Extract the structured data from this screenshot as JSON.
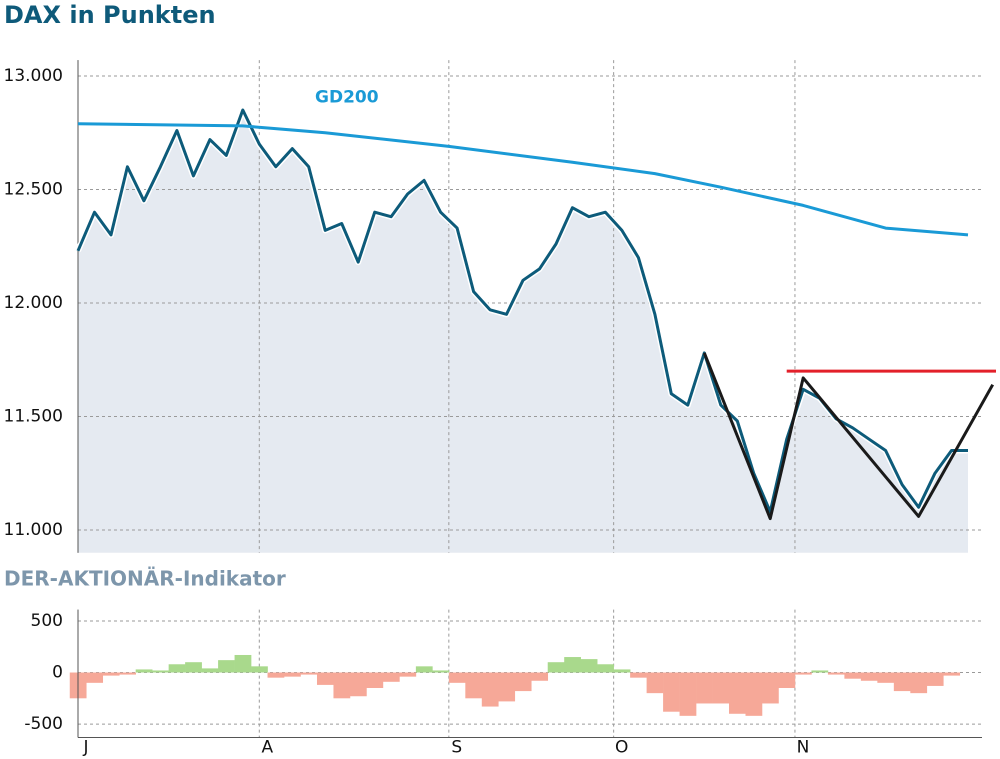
{
  "chart_data": [
    {
      "type": "line",
      "title": "DAX in Punkten",
      "xlim": [
        0,
        108
      ],
      "xticks": [
        0,
        22,
        45,
        65,
        87
      ],
      "ylim": [
        10900,
        13070
      ],
      "yticks": [
        {
          "value": 11000,
          "label": "11.000"
        },
        {
          "value": 11500,
          "label": "11.500"
        },
        {
          "value": 12000,
          "label": "12.000"
        },
        {
          "value": 12500,
          "label": "12.500"
        },
        {
          "value": 13000,
          "label": "13.000"
        }
      ],
      "grid": true,
      "series": [
        {
          "color": "#0d5b7a",
          "area_color": "#e5eaf1",
          "x": [
            0,
            2,
            4,
            6,
            8,
            10,
            12,
            14,
            16,
            18,
            20,
            22,
            24,
            26,
            28,
            30,
            32,
            34,
            36,
            38,
            40,
            42,
            44,
            46,
            48,
            50,
            52,
            54,
            56,
            58,
            60,
            62,
            64,
            66,
            68,
            70,
            72,
            74,
            76,
            78,
            80,
            82,
            84,
            86,
            88,
            90,
            92,
            94,
            96,
            98,
            100,
            102,
            104,
            106,
            108
          ],
          "values": [
            12230,
            12400,
            12300,
            12600,
            12450,
            12600,
            12760,
            12560,
            12720,
            12650,
            12850,
            12700,
            12600,
            12680,
            12600,
            12320,
            12350,
            12180,
            12400,
            12380,
            12480,
            12540,
            12400,
            12330,
            12050,
            11970,
            11950,
            12100,
            12150,
            12260,
            12420,
            12380,
            12400,
            12320,
            12200,
            11950,
            11600,
            11550,
            11780,
            11550,
            11480,
            11250,
            11080,
            11400,
            11620,
            11580,
            11490,
            11450,
            11400,
            11350,
            11200,
            11100,
            11250,
            11350,
            11350
          ]
        },
        {
          "name": "GD200",
          "color": "#1a9ad6",
          "x": [
            0,
            20,
            30,
            45,
            60,
            70,
            78,
            88,
            98,
            108
          ],
          "values": [
            12790,
            12780,
            12750,
            12690,
            12620,
            12570,
            12510,
            12430,
            12330,
            12300
          ]
        }
      ],
      "annotation_lines": [
        {
          "color": "#e3202a",
          "x": [
            86,
            111.4
          ],
          "values": [
            11700,
            11700
          ]
        },
        {
          "color": "#1a1a1a",
          "x": [
            76,
            84,
            88,
            102,
            111
          ],
          "values": [
            11780,
            11050,
            11670,
            11060,
            11640
          ]
        }
      ]
    },
    {
      "type": "bar",
      "title": "DER-AKTIONÄR-Indikator",
      "xlim": [
        0,
        108
      ],
      "xticks": [
        {
          "value": 0,
          "label": "J"
        },
        {
          "value": 22,
          "label": "A"
        },
        {
          "value": 45,
          "label": "S"
        },
        {
          "value": 65,
          "label": "O"
        },
        {
          "value": 87,
          "label": "N"
        }
      ],
      "ylim": [
        -630,
        610
      ],
      "yticks": [
        -500,
        0,
        500
      ],
      "grid": true,
      "positive_color": "#a9d98c",
      "negative_color": "#f6a898",
      "x": [
        0,
        2,
        4,
        6,
        8,
        10,
        12,
        14,
        16,
        18,
        20,
        22,
        24,
        26,
        28,
        30,
        32,
        34,
        36,
        38,
        40,
        42,
        44,
        46,
        48,
        50,
        52,
        54,
        56,
        58,
        60,
        62,
        64,
        66,
        68,
        70,
        72,
        74,
        76,
        78,
        80,
        82,
        84,
        86,
        88,
        90,
        92,
        94,
        96,
        98,
        100,
        102,
        104,
        106,
        108
      ],
      "values": [
        -250,
        -100,
        -30,
        -20,
        30,
        20,
        80,
        100,
        40,
        120,
        170,
        60,
        -50,
        -40,
        -20,
        -120,
        -250,
        -230,
        -150,
        -90,
        -40,
        60,
        20,
        -100,
        -250,
        -330,
        -280,
        -180,
        -80,
        100,
        150,
        130,
        80,
        30,
        -50,
        -200,
        -380,
        -420,
        -300,
        -300,
        -400,
        -420,
        -300,
        -150,
        -20,
        20,
        -20,
        -60,
        -80,
        -100,
        -180,
        -200,
        -130,
        -30,
        0
      ]
    }
  ]
}
